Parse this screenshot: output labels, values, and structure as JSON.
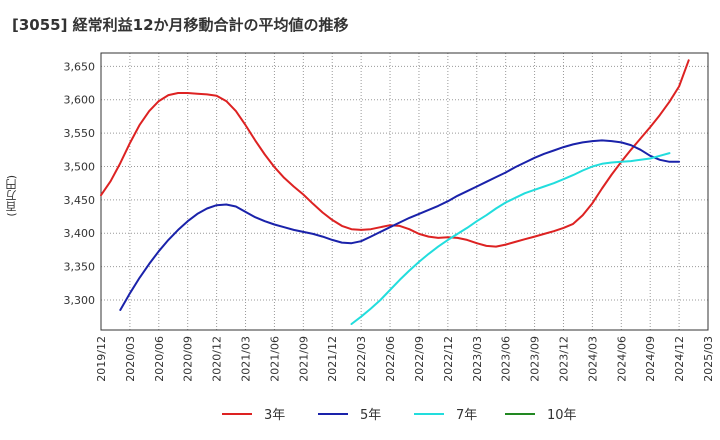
{
  "title": "[3055]  経常利益12か月移動合計の平均値の推移",
  "chart_data": {
    "type": "line",
    "title": "[3055]  経常利益12か月移動合計の平均値の推移",
    "ylabel": "(百万円)",
    "xlabel": "",
    "ylim": [
      3255,
      3670
    ],
    "yticks": [
      3300,
      3350,
      3400,
      3450,
      3500,
      3550,
      3600,
      3650
    ],
    "ytick_labels": [
      "3,300",
      "3,350",
      "3,400",
      "3,450",
      "3,500",
      "3,550",
      "3,600",
      "3,650"
    ],
    "xticks": [
      "2019/12",
      "2020/03",
      "2020/06",
      "2020/09",
      "2020/12",
      "2021/03",
      "2021/06",
      "2021/09",
      "2021/12",
      "2022/03",
      "2022/06",
      "2022/09",
      "2022/12",
      "2023/03",
      "2023/06",
      "2023/09",
      "2023/12",
      "2024/03",
      "2024/06",
      "2024/09",
      "2024/12",
      "2025/03"
    ],
    "x_index_range": [
      0,
      63
    ],
    "grid": true,
    "legend_position": "bottom",
    "series": [
      {
        "name": "3年",
        "color": "#dd2222",
        "start": 0,
        "values": [
          3457,
          3478,
          3505,
          3535,
          3562,
          3583,
          3598,
          3607,
          3610,
          3610,
          3609,
          3608,
          3606,
          3598,
          3583,
          3562,
          3539,
          3518,
          3499,
          3483,
          3470,
          3458,
          3444,
          3431,
          3420,
          3411,
          3406,
          3405,
          3406,
          3409,
          3412,
          3411,
          3406,
          3399,
          3395,
          3393,
          3394,
          3393,
          3390,
          3385,
          3381,
          3380,
          3383,
          3387,
          3391,
          3395,
          3399,
          3403,
          3408,
          3414,
          3427,
          3445,
          3467,
          3488,
          3507,
          3525,
          3542,
          3559,
          3577,
          3597,
          3620,
          3659
        ]
      },
      {
        "name": "5年",
        "color": "#1a22aa",
        "start": 2,
        "values": [
          3285,
          3310,
          3333,
          3354,
          3373,
          3390,
          3405,
          3418,
          3429,
          3437,
          3442,
          3443,
          3440,
          3432,
          3424,
          3418,
          3413,
          3409,
          3405,
          3402,
          3399,
          3395,
          3390,
          3386,
          3385,
          3388,
          3395,
          3402,
          3409,
          3416,
          3423,
          3429,
          3435,
          3441,
          3448,
          3456,
          3463,
          3470,
          3477,
          3484,
          3491,
          3499,
          3506,
          3513,
          3519,
          3524,
          3529,
          3533,
          3536,
          3538,
          3539,
          3538,
          3536,
          3532,
          3525,
          3516,
          3510,
          3507,
          3507
        ]
      },
      {
        "name": "7年",
        "color": "#22dddd",
        "start": 26,
        "values": [
          3264,
          3275,
          3287,
          3300,
          3315,
          3330,
          3344,
          3357,
          3369,
          3380,
          3390,
          3399,
          3408,
          3418,
          3427,
          3437,
          3446,
          3453,
          3460,
          3465,
          3470,
          3475,
          3481,
          3487,
          3494,
          3500,
          3504,
          3506,
          3507,
          3508,
          3510,
          3512,
          3516,
          3520
        ]
      },
      {
        "name": "10年",
        "color": "#228822",
        "start": 0,
        "values": []
      }
    ]
  }
}
